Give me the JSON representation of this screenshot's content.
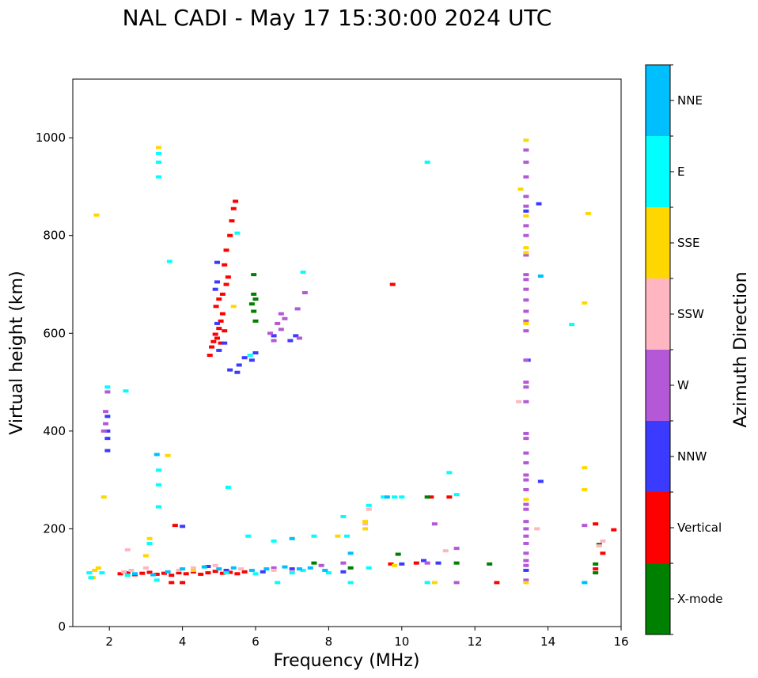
{
  "chart_data": {
    "type": "scatter",
    "title": "NAL CADI - May 17 15:30:00 2024 UTC",
    "xlabel": "Frequency (MHz)",
    "ylabel": "Virtual height (km)",
    "xlim": [
      1,
      16
    ],
    "ylim": [
      0,
      1120
    ],
    "grid": true,
    "x_ticks": [
      2,
      4,
      6,
      8,
      10,
      12,
      14,
      16
    ],
    "y_ticks": [
      0,
      200,
      400,
      600,
      800,
      1000
    ],
    "colorbar": {
      "label": "Azimuth Direction",
      "categories": [
        "X-mode",
        "Vertical",
        "NNW",
        "W",
        "SSW",
        "SSE",
        "E",
        "NNE"
      ],
      "colors": [
        "#008000",
        "#ff0000",
        "#3b3bff",
        "#b558d8",
        "#ffb6c1",
        "#ffd700",
        "#00ffff",
        "#00bfff"
      ]
    },
    "series": [
      {
        "name": "Vertical",
        "points": [
          [
            2.3,
            108
          ],
          [
            2.5,
            110
          ],
          [
            2.7,
            106
          ],
          [
            2.9,
            109
          ],
          [
            3.1,
            111
          ],
          [
            3.3,
            107
          ],
          [
            3.5,
            109
          ],
          [
            3.7,
            105
          ],
          [
            3.9,
            110
          ],
          [
            4.1,
            108
          ],
          [
            4.3,
            112
          ],
          [
            4.5,
            107
          ],
          [
            4.7,
            110
          ],
          [
            4.9,
            113
          ],
          [
            5.1,
            109
          ],
          [
            5.3,
            111
          ],
          [
            5.5,
            108
          ],
          [
            5.7,
            112
          ],
          [
            4.0,
            90
          ],
          [
            3.7,
            90
          ],
          [
            3.8,
            207
          ],
          [
            4.75,
            555
          ],
          [
            4.8,
            572
          ],
          [
            4.85,
            583
          ],
          [
            4.9,
            598
          ],
          [
            4.95,
            590
          ],
          [
            5.0,
            610
          ],
          [
            5.05,
            625
          ],
          [
            5.1,
            640
          ],
          [
            4.92,
            655
          ],
          [
            5.0,
            670
          ],
          [
            5.1,
            680
          ],
          [
            5.2,
            700
          ],
          [
            5.25,
            715
          ],
          [
            5.15,
            740
          ],
          [
            5.2,
            770
          ],
          [
            5.3,
            800
          ],
          [
            5.35,
            830
          ],
          [
            5.4,
            855
          ],
          [
            5.45,
            870
          ],
          [
            5.05,
            580
          ],
          [
            5.15,
            605
          ],
          [
            9.75,
            700
          ],
          [
            10.8,
            265
          ],
          [
            11.3,
            265
          ],
          [
            12.6,
            90
          ],
          [
            15.3,
            210
          ],
          [
            15.3,
            118
          ],
          [
            15.5,
            150
          ],
          [
            15.8,
            198
          ],
          [
            10.4,
            130
          ],
          [
            9.7,
            128
          ]
        ]
      },
      {
        "name": "X-mode",
        "points": [
          [
            5.95,
            720
          ],
          [
            5.95,
            680
          ],
          [
            6.0,
            670
          ],
          [
            5.9,
            660
          ],
          [
            5.95,
            645
          ],
          [
            6.0,
            625
          ],
          [
            10.7,
            265
          ],
          [
            11.5,
            130
          ],
          [
            12.4,
            128
          ],
          [
            15.3,
            128
          ],
          [
            15.4,
            168
          ],
          [
            15.3,
            110
          ],
          [
            9.9,
            148
          ],
          [
            8.6,
            120
          ],
          [
            7.6,
            130
          ]
        ]
      },
      {
        "name": "NNW",
        "points": [
          [
            1.95,
            360
          ],
          [
            1.95,
            385
          ],
          [
            1.95,
            400
          ],
          [
            1.95,
            430
          ],
          [
            5.3,
            525
          ],
          [
            5.5,
            520
          ],
          [
            5.55,
            535
          ],
          [
            5.7,
            550
          ],
          [
            5.9,
            545
          ],
          [
            6.0,
            560
          ],
          [
            5.0,
            565
          ],
          [
            5.15,
            580
          ],
          [
            4.95,
            620
          ],
          [
            4.9,
            690
          ],
          [
            4.95,
            705
          ],
          [
            4.95,
            745
          ],
          [
            4.0,
            205
          ],
          [
            4.7,
            123
          ],
          [
            5.2,
            115
          ],
          [
            6.2,
            112
          ],
          [
            7.0,
            118
          ],
          [
            8.4,
            112
          ],
          [
            10.0,
            128
          ],
          [
            10.6,
            135
          ],
          [
            13.4,
            850
          ],
          [
            13.45,
            545
          ],
          [
            13.4,
            115
          ],
          [
            13.75,
            865
          ],
          [
            13.8,
            297
          ],
          [
            6.5,
            595
          ],
          [
            7.1,
            595
          ],
          [
            6.95,
            585
          ],
          [
            11.0,
            130
          ]
        ]
      },
      {
        "name": "W",
        "points": [
          [
            1.85,
            400
          ],
          [
            1.9,
            415
          ],
          [
            1.9,
            440
          ],
          [
            1.95,
            480
          ],
          [
            6.4,
            600
          ],
          [
            6.6,
            620
          ],
          [
            6.7,
            640
          ],
          [
            6.8,
            630
          ],
          [
            7.15,
            650
          ],
          [
            6.7,
            608
          ],
          [
            6.5,
            585
          ],
          [
            7.2,
            590
          ],
          [
            7.35,
            683
          ],
          [
            13.4,
            975
          ],
          [
            13.4,
            950
          ],
          [
            13.4,
            920
          ],
          [
            13.4,
            880
          ],
          [
            13.4,
            860
          ],
          [
            13.4,
            820
          ],
          [
            13.4,
            800
          ],
          [
            13.4,
            760
          ],
          [
            13.4,
            720
          ],
          [
            13.4,
            710
          ],
          [
            13.4,
            690
          ],
          [
            13.4,
            668
          ],
          [
            13.4,
            645
          ],
          [
            13.4,
            625
          ],
          [
            13.4,
            605
          ],
          [
            13.4,
            545
          ],
          [
            13.4,
            500
          ],
          [
            13.4,
            490
          ],
          [
            13.4,
            460
          ],
          [
            13.4,
            395
          ],
          [
            13.4,
            385
          ],
          [
            13.4,
            355
          ],
          [
            13.4,
            335
          ],
          [
            13.4,
            310
          ],
          [
            13.4,
            300
          ],
          [
            13.4,
            280
          ],
          [
            13.4,
            250
          ],
          [
            13.4,
            240
          ],
          [
            13.4,
            215
          ],
          [
            13.4,
            200
          ],
          [
            13.4,
            185
          ],
          [
            13.4,
            170
          ],
          [
            13.4,
            150
          ],
          [
            13.4,
            135
          ],
          [
            13.4,
            125
          ],
          [
            13.4,
            95
          ],
          [
            15.0,
            207
          ],
          [
            11.5,
            160
          ],
          [
            11.5,
            90
          ],
          [
            10.9,
            210
          ],
          [
            10.7,
            130
          ],
          [
            8.4,
            130
          ],
          [
            7.8,
            125
          ],
          [
            6.5,
            120
          ]
        ]
      },
      {
        "name": "SSW",
        "points": [
          [
            2.4,
            112
          ],
          [
            2.6,
            115
          ],
          [
            3.0,
            120
          ],
          [
            3.9,
            115
          ],
          [
            4.3,
            120
          ],
          [
            4.9,
            125
          ],
          [
            5.6,
            118
          ],
          [
            6.5,
            115
          ],
          [
            7.0,
            112
          ],
          [
            13.2,
            460
          ],
          [
            15.4,
            165
          ],
          [
            15.5,
            175
          ],
          [
            11.2,
            155
          ],
          [
            9.1,
            240
          ],
          [
            9.0,
            210
          ],
          [
            2.5,
            157
          ],
          [
            13.7,
            200
          ]
        ]
      },
      {
        "name": "SSE",
        "points": [
          [
            1.55,
            100
          ],
          [
            1.6,
            115
          ],
          [
            1.7,
            120
          ],
          [
            1.65,
            842
          ],
          [
            1.85,
            265
          ],
          [
            3.35,
            980
          ],
          [
            3.6,
            350
          ],
          [
            3.1,
            180
          ],
          [
            3.0,
            145
          ],
          [
            4.3,
            115
          ],
          [
            5.4,
            655
          ],
          [
            8.25,
            185
          ],
          [
            9.0,
            200
          ],
          [
            9.0,
            215
          ],
          [
            9.8,
            125
          ],
          [
            10.9,
            90
          ],
          [
            13.25,
            895
          ],
          [
            13.4,
            995
          ],
          [
            13.4,
            840
          ],
          [
            13.4,
            775
          ],
          [
            13.4,
            765
          ],
          [
            13.4,
            620
          ],
          [
            13.4,
            260
          ],
          [
            15.1,
            845
          ],
          [
            15.0,
            662
          ],
          [
            15.0,
            325
          ],
          [
            15.0,
            280
          ],
          [
            13.4,
            90
          ]
        ]
      },
      {
        "name": "E",
        "points": [
          [
            1.45,
            110
          ],
          [
            1.5,
            100
          ],
          [
            1.8,
            110
          ],
          [
            2.5,
            105
          ],
          [
            3.1,
            170
          ],
          [
            3.3,
            95
          ],
          [
            3.35,
            245
          ],
          [
            3.35,
            290
          ],
          [
            3.35,
            320
          ],
          [
            3.35,
            920
          ],
          [
            3.35,
            950
          ],
          [
            3.35,
            968
          ],
          [
            3.65,
            747
          ],
          [
            5.25,
            285
          ],
          [
            5.5,
            805
          ],
          [
            5.85,
            555
          ],
          [
            5.8,
            185
          ],
          [
            6.5,
            175
          ],
          [
            6.6,
            90
          ],
          [
            7.3,
            725
          ],
          [
            7.3,
            115
          ],
          [
            7.6,
            185
          ],
          [
            8.0,
            110
          ],
          [
            8.4,
            225
          ],
          [
            8.5,
            185
          ],
          [
            8.6,
            90
          ],
          [
            9.1,
            120
          ],
          [
            9.1,
            248
          ],
          [
            9.5,
            265
          ],
          [
            9.8,
            265
          ],
          [
            10.0,
            265
          ],
          [
            10.7,
            950
          ],
          [
            10.7,
            90
          ],
          [
            11.3,
            315
          ],
          [
            11.5,
            270
          ],
          [
            14.65,
            618
          ],
          [
            15.0,
            90
          ],
          [
            5.2,
            110
          ],
          [
            6.0,
            108
          ],
          [
            7.0,
            110
          ],
          [
            2.45,
            482
          ],
          [
            1.95,
            490
          ]
        ]
      },
      {
        "name": "NNE",
        "points": [
          [
            2.7,
            108
          ],
          [
            3.2,
            106
          ],
          [
            3.6,
            112
          ],
          [
            4.0,
            118
          ],
          [
            4.6,
            122
          ],
          [
            5.0,
            118
          ],
          [
            5.4,
            120
          ],
          [
            5.9,
            115
          ],
          [
            6.3,
            118
          ],
          [
            6.8,
            122
          ],
          [
            7.2,
            118
          ],
          [
            7.5,
            120
          ],
          [
            7.9,
            115
          ],
          [
            8.6,
            150
          ],
          [
            9.6,
            265
          ],
          [
            13.8,
            717
          ],
          [
            15.0,
            90
          ],
          [
            3.3,
            352
          ],
          [
            7.0,
            180
          ]
        ]
      }
    ]
  }
}
